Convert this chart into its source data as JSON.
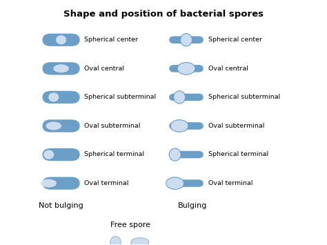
{
  "title": "Shape and position of bacterial spores",
  "bg_color": "#ffffff",
  "body_color": "#6b9fc8",
  "inner_color": "#ccddef",
  "inner_edge": "#9bbcd8",
  "rows": [
    {
      "label": "Spherical center",
      "shape": "spherical",
      "position": "center"
    },
    {
      "label": "Oval central",
      "shape": "oval",
      "position": "center"
    },
    {
      "label": "Spherical subterminal",
      "shape": "spherical",
      "position": "subterminal"
    },
    {
      "label": "Oval subterminal",
      "shape": "oval",
      "position": "subterminal"
    },
    {
      "label": "Spherical terminal",
      "shape": "spherical",
      "position": "terminal"
    },
    {
      "label": "Oval terminal",
      "shape": "oval",
      "position": "terminal"
    }
  ],
  "not_bulging_label": "Not bulging",
  "bulging_label": "Bulging",
  "free_spore_label": "Free spore",
  "label_fontsize": 6.8,
  "title_fontsize": 9.5,
  "col_label_fontsize": 8.0
}
